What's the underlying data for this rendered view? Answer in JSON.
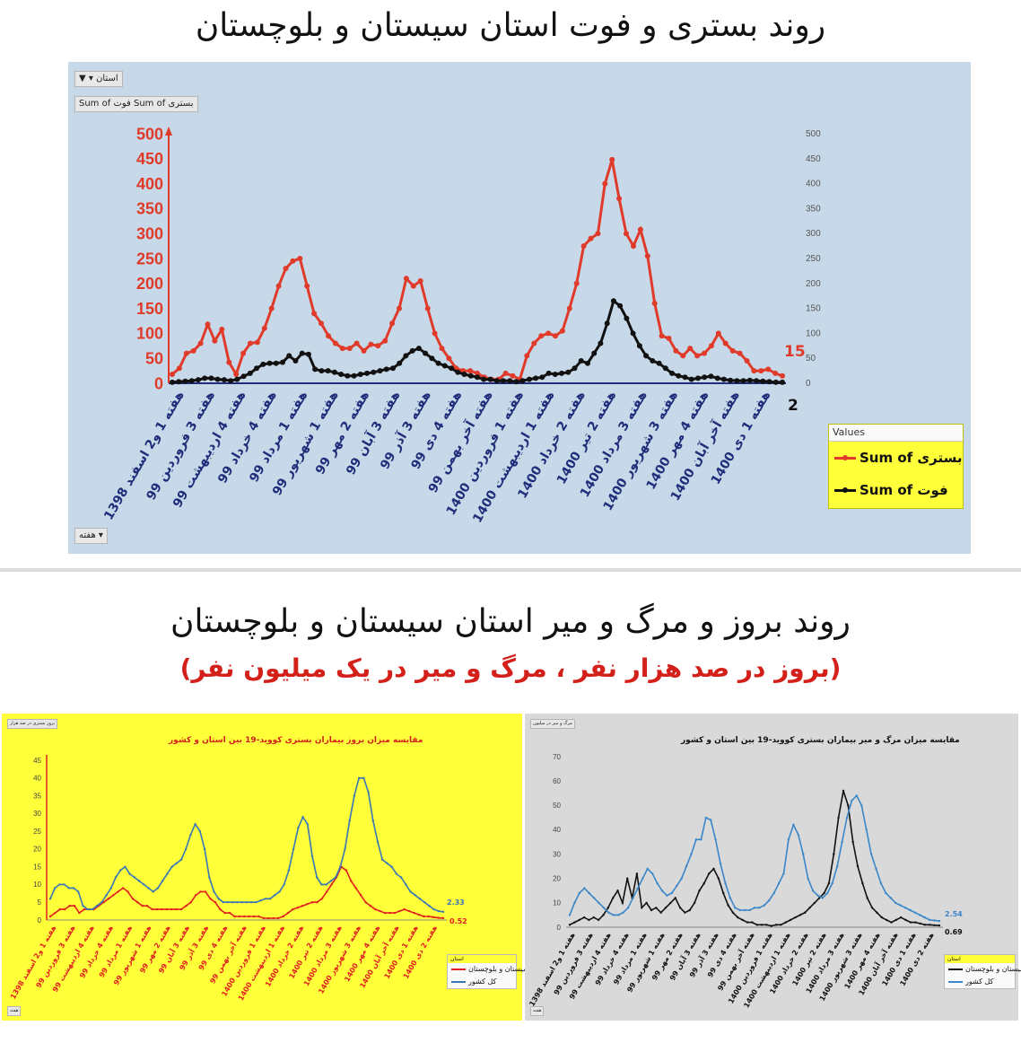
{
  "titles": {
    "top": "روند بستری و فوت استان سیستان و بلوچستان",
    "bottom": "روند بروز و مرگ و میر استان سیستان و بلوچستان",
    "bottom_sub": "(بروز در صد هزار نفر ، مرگ و میر در یک میلیون نفر)"
  },
  "main": {
    "filter_chip": "استان",
    "values_chip": "Sum of فوت   Sum of بستری",
    "axis_chip": "هفته",
    "legend_header": "Values",
    "legend_items": [
      "Sum of بستری",
      "Sum of فوت"
    ],
    "end_label_red": "15",
    "end_label_black": "2"
  },
  "left_chart": {
    "chip": "بروز بستری در صد هزار",
    "title": "مقایسه میزان بروز بیماران بستری کووید-19 بین استان و کشور",
    "legend_header": "استان",
    "legend_items": [
      "سیستان و بلوچستان",
      "کل کشور"
    ],
    "end_label_top": "2.33",
    "end_label_bottom": "0.52",
    "axis_chip": "هفته"
  },
  "right_chart": {
    "chip": "مرگ و میر در میلیون",
    "title": "مقایسه میزان مرگ و میر بیماران بستری کووید-19 بین استان و کشور",
    "legend_header": "استان",
    "legend_items": [
      "سیستان و بلوچستان",
      "کل کشور"
    ],
    "end_label_top": "2.54",
    "end_label_bottom": "0.69",
    "axis_chip": "هفته"
  },
  "chart_data": [
    {
      "type": "line",
      "y_left": {
        "min": 0,
        "max": 500,
        "ticks": [
          0,
          50,
          100,
          150,
          200,
          250,
          300,
          350,
          400,
          450,
          500
        ]
      },
      "y_right": {
        "min": 0,
        "max": 500,
        "ticks": [
          0,
          50,
          100,
          150,
          200,
          250,
          300,
          350,
          400,
          450,
          500
        ]
      },
      "x_labels": [
        "هفته 1 و2 اسفند 1398",
        "هفته 3 فروردین 99",
        "هفته 4 اردیبهشت 99",
        "هفته 4 خرداد 99",
        "هفته 1 مرداد 99",
        "هفته 1 شهریور 99",
        "هفته 2 مهر 99",
        "هفته 3 آبان 99",
        "هفته 3 آذر 99",
        "هفته 4 دی 99",
        "هفته آخر بهمن 99",
        "هفته 1 فروردین 1400",
        "هفته 1 اردیبهشت 1400",
        "هفته 2 خرداد 1400",
        "هفته 2 تیر 1400",
        "هفته 3 مرداد 1400",
        "هفته 3 شهریور 1400",
        "هفته 4 مهر 1400",
        "هفته آخر آبان 1400",
        "هفته 1 دی 1400"
      ],
      "series": [
        {
          "name": "Sum of بستری",
          "color": "#e03a2b",
          "values": [
            18,
            30,
            60,
            65,
            80,
            118,
            85,
            108,
            42,
            18,
            60,
            80,
            82,
            110,
            150,
            195,
            230,
            245,
            250,
            195,
            140,
            120,
            95,
            80,
            70,
            70,
            80,
            65,
            78,
            75,
            85,
            120,
            150,
            210,
            195,
            205,
            150,
            100,
            70,
            50,
            30,
            25,
            25,
            20,
            12,
            8,
            8,
            20,
            15,
            8,
            55,
            80,
            95,
            100,
            95,
            105,
            150,
            200,
            275,
            290,
            300,
            400,
            448,
            370,
            300,
            275,
            308,
            255,
            160,
            95,
            90,
            65,
            55,
            70,
            55,
            60,
            75,
            100,
            80,
            65,
            60,
            45,
            25,
            25,
            28,
            20,
            15
          ]
        },
        {
          "name": "Sum of فوت",
          "color": "#111111",
          "values": [
            2,
            3,
            4,
            5,
            7,
            10,
            10,
            8,
            7,
            5,
            8,
            14,
            20,
            30,
            38,
            40,
            40,
            42,
            55,
            45,
            60,
            58,
            28,
            25,
            25,
            22,
            18,
            15,
            15,
            18,
            20,
            22,
            25,
            28,
            30,
            40,
            55,
            65,
            70,
            60,
            50,
            40,
            35,
            30,
            22,
            18,
            15,
            12,
            8,
            8,
            5,
            5,
            5,
            3,
            5,
            8,
            10,
            12,
            20,
            18,
            20,
            22,
            30,
            45,
            40,
            60,
            80,
            120,
            165,
            155,
            130,
            100,
            75,
            55,
            45,
            40,
            30,
            20,
            15,
            12,
            8,
            10,
            12,
            14,
            10,
            8,
            6,
            5,
            5,
            6,
            5,
            4,
            3,
            2,
            2
          ]
        }
      ]
    },
    {
      "type": "line",
      "y": {
        "min": 0,
        "max": 45,
        "ticks": [
          0,
          5,
          10,
          15,
          20,
          25,
          30,
          35,
          40,
          45
        ]
      },
      "x_labels": [
        "هفته 1 و2 اسفند 1398",
        "هفته 3 فروردین 99",
        "هفته 4 اردیبهشت 99",
        "هفته 4 خرداد 99",
        "هفته 1 مرداد 99",
        "هفته 1 شهریور 99",
        "هفته 2 مهر 99",
        "هفته 3 آبان 99",
        "هفته 3 آذر 99",
        "هفته 4 دی 99",
        "هفته آخر بهمن 99",
        "هفته 1 فروردین 1400",
        "هفته 1 اردیبهشت 1400",
        "هفته 2 خرداد 1400",
        "هفته 2 تیر 1400",
        "هفته 3 مرداد 1400",
        "هفته 3 شهریور 1400",
        "هفته 4 مهر 1400",
        "هفته آخر آبان 1400",
        "هفته 1 دی 1400",
        "هفته 2 دی 1400"
      ],
      "series": [
        {
          "name": "سیستان و بلوچستان",
          "color": "#e02020",
          "values": [
            1,
            2,
            3,
            3,
            4,
            4,
            2,
            3,
            3,
            3,
            4,
            5,
            6,
            7,
            8,
            9,
            8,
            6,
            5,
            4,
            4,
            3,
            3,
            3,
            3,
            3,
            3,
            3,
            4,
            5,
            7,
            8,
            8,
            6,
            5,
            3,
            2,
            2,
            1,
            1,
            1,
            1,
            1,
            1,
            0.5,
            0.5,
            0.5,
            0.5,
            1,
            2,
            3,
            3.5,
            4,
            4.5,
            5,
            5,
            6,
            8,
            10,
            12,
            15,
            14,
            11,
            9,
            7,
            5,
            4,
            3,
            2.5,
            2,
            2,
            2,
            2.5,
            3,
            2.5,
            2,
            1.5,
            1,
            1,
            0.8,
            0.6,
            0.52
          ]
        },
        {
          "name": "کل کشور",
          "color": "#3a78b5",
          "values": [
            6,
            9,
            10,
            10,
            9,
            9,
            8,
            4,
            3,
            3,
            4,
            5,
            7,
            9,
            12,
            14,
            15,
            13,
            12,
            11,
            10,
            9,
            8,
            9,
            11,
            13,
            15,
            16,
            17,
            20,
            24,
            27,
            25,
            20,
            12,
            8,
            6,
            5,
            5,
            5,
            5,
            5,
            5,
            5,
            5,
            5.5,
            6,
            6,
            7,
            8,
            10,
            14,
            20,
            26,
            29,
            27,
            18,
            12,
            10,
            10,
            11,
            12,
            15,
            20,
            28,
            35,
            40,
            40,
            36,
            28,
            22,
            17,
            16,
            15,
            13,
            12,
            10,
            8,
            7,
            6,
            5,
            4,
            3,
            2.5,
            2.33
          ]
        }
      ]
    },
    {
      "type": "line",
      "y": {
        "min": 0,
        "max": 70,
        "ticks": [
          0,
          10,
          20,
          30,
          40,
          50,
          60,
          70
        ]
      },
      "x_labels": [
        "هفته 1 و2 اسفند 1398",
        "هفته 3 فروردین 99",
        "هفته 4 اردیبهشت 99",
        "هفته 4 خرداد 99",
        "هفته 1 مرداد 99",
        "هفته 1 شهریور 99",
        "هفته 2 مهر 99",
        "هفته 3 آبان 99",
        "هفته 3 آذر 99",
        "هفته 4 دی 99",
        "هفته آخر بهمن 99",
        "هفته 1 فروردین 1400",
        "هفته 1 اردیبهشت 1400",
        "هفته 2 خرداد 1400",
        "هفته 2 تیر 1400",
        "هفته 3 مرداد 1400",
        "هفته 3 شهریور 1400",
        "هفته 4 مهر 1400",
        "هفته آخر آبان 1400",
        "هفته 1 دی 1400",
        "هفته 2 دی 1400"
      ],
      "series": [
        {
          "name": "سیستان و بلوچستان",
          "color": "#111111",
          "values": [
            1,
            2,
            3,
            4,
            3,
            4,
            3,
            5,
            8,
            12,
            15,
            10,
            20,
            12,
            22,
            8,
            10,
            7,
            8,
            6,
            8,
            10,
            12,
            8,
            6,
            7,
            10,
            15,
            18,
            22,
            24,
            20,
            14,
            9,
            6,
            4,
            3,
            2,
            2,
            1,
            1,
            1,
            0.5,
            1,
            1,
            2,
            3,
            4,
            5,
            6,
            8,
            10,
            12,
            14,
            18,
            30,
            45,
            56,
            50,
            35,
            25,
            18,
            12,
            8,
            6,
            4,
            3,
            2,
            3,
            4,
            3,
            2,
            2,
            1.5,
            1,
            1,
            0.8,
            0.69
          ]
        },
        {
          "name": "کل کشور",
          "color": "#3a86c8",
          "values": [
            5,
            10,
            14,
            16,
            14,
            12,
            10,
            8,
            6,
            5,
            5,
            6,
            8,
            12,
            16,
            20,
            24,
            22,
            18,
            15,
            13,
            14,
            17,
            20,
            25,
            30,
            36,
            36,
            45,
            44,
            36,
            26,
            18,
            12,
            8,
            7,
            7,
            7,
            8,
            8,
            9,
            11,
            14,
            18,
            22,
            36,
            42,
            38,
            30,
            20,
            15,
            13,
            12,
            14,
            18,
            25,
            35,
            45,
            52,
            54,
            50,
            40,
            30,
            24,
            18,
            14,
            12,
            10,
            9,
            8,
            7,
            6,
            5,
            4,
            3,
            2.8,
            2.54
          ]
        }
      ]
    }
  ]
}
